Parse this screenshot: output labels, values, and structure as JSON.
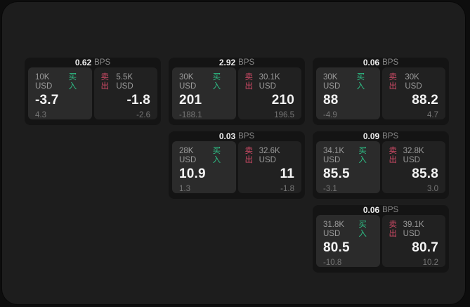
{
  "colors": {
    "surface_bg": "#1d1d1d",
    "card_bg": "#141414",
    "panel_buy_bg": "#2b2b2b",
    "panel_sell_bg": "#212121",
    "buy": "#2ebd85",
    "sell": "#cf4a66"
  },
  "labels": {
    "bps_unit": "BPS",
    "buy": "买入",
    "sell": "卖出"
  },
  "cards": [
    {
      "bps": "0.62",
      "buy": {
        "amount": "10K USD",
        "value": "-3.7",
        "sub": "4.3"
      },
      "sell": {
        "amount": "5.5K USD",
        "value": "-1.8",
        "sub": "-2.6"
      }
    },
    {
      "bps": "2.92",
      "buy": {
        "amount": "30K USD",
        "value": "201",
        "sub": "-188.1"
      },
      "sell": {
        "amount": "30.1K USD",
        "value": "210",
        "sub": "196.5"
      }
    },
    {
      "bps": "0.06",
      "buy": {
        "amount": "30K USD",
        "value": "88",
        "sub": "-4.9"
      },
      "sell": {
        "amount": "30K USD",
        "value": "88.2",
        "sub": "4.7"
      }
    },
    {
      "bps": "0.03",
      "buy": {
        "amount": "28K USD",
        "value": "10.9",
        "sub": "1.3"
      },
      "sell": {
        "amount": "32.6K USD",
        "value": "11",
        "sub": "-1.8"
      }
    },
    {
      "bps": "0.09",
      "buy": {
        "amount": "34.1K USD",
        "value": "85.5",
        "sub": "-3.1"
      },
      "sell": {
        "amount": "32.8K USD",
        "value": "85.8",
        "sub": "3.0"
      }
    },
    {
      "bps": "0.06",
      "buy": {
        "amount": "31.8K USD",
        "value": "80.5",
        "sub": "-10.8"
      },
      "sell": {
        "amount": "39.1K USD",
        "value": "80.7",
        "sub": "10.2"
      }
    }
  ]
}
